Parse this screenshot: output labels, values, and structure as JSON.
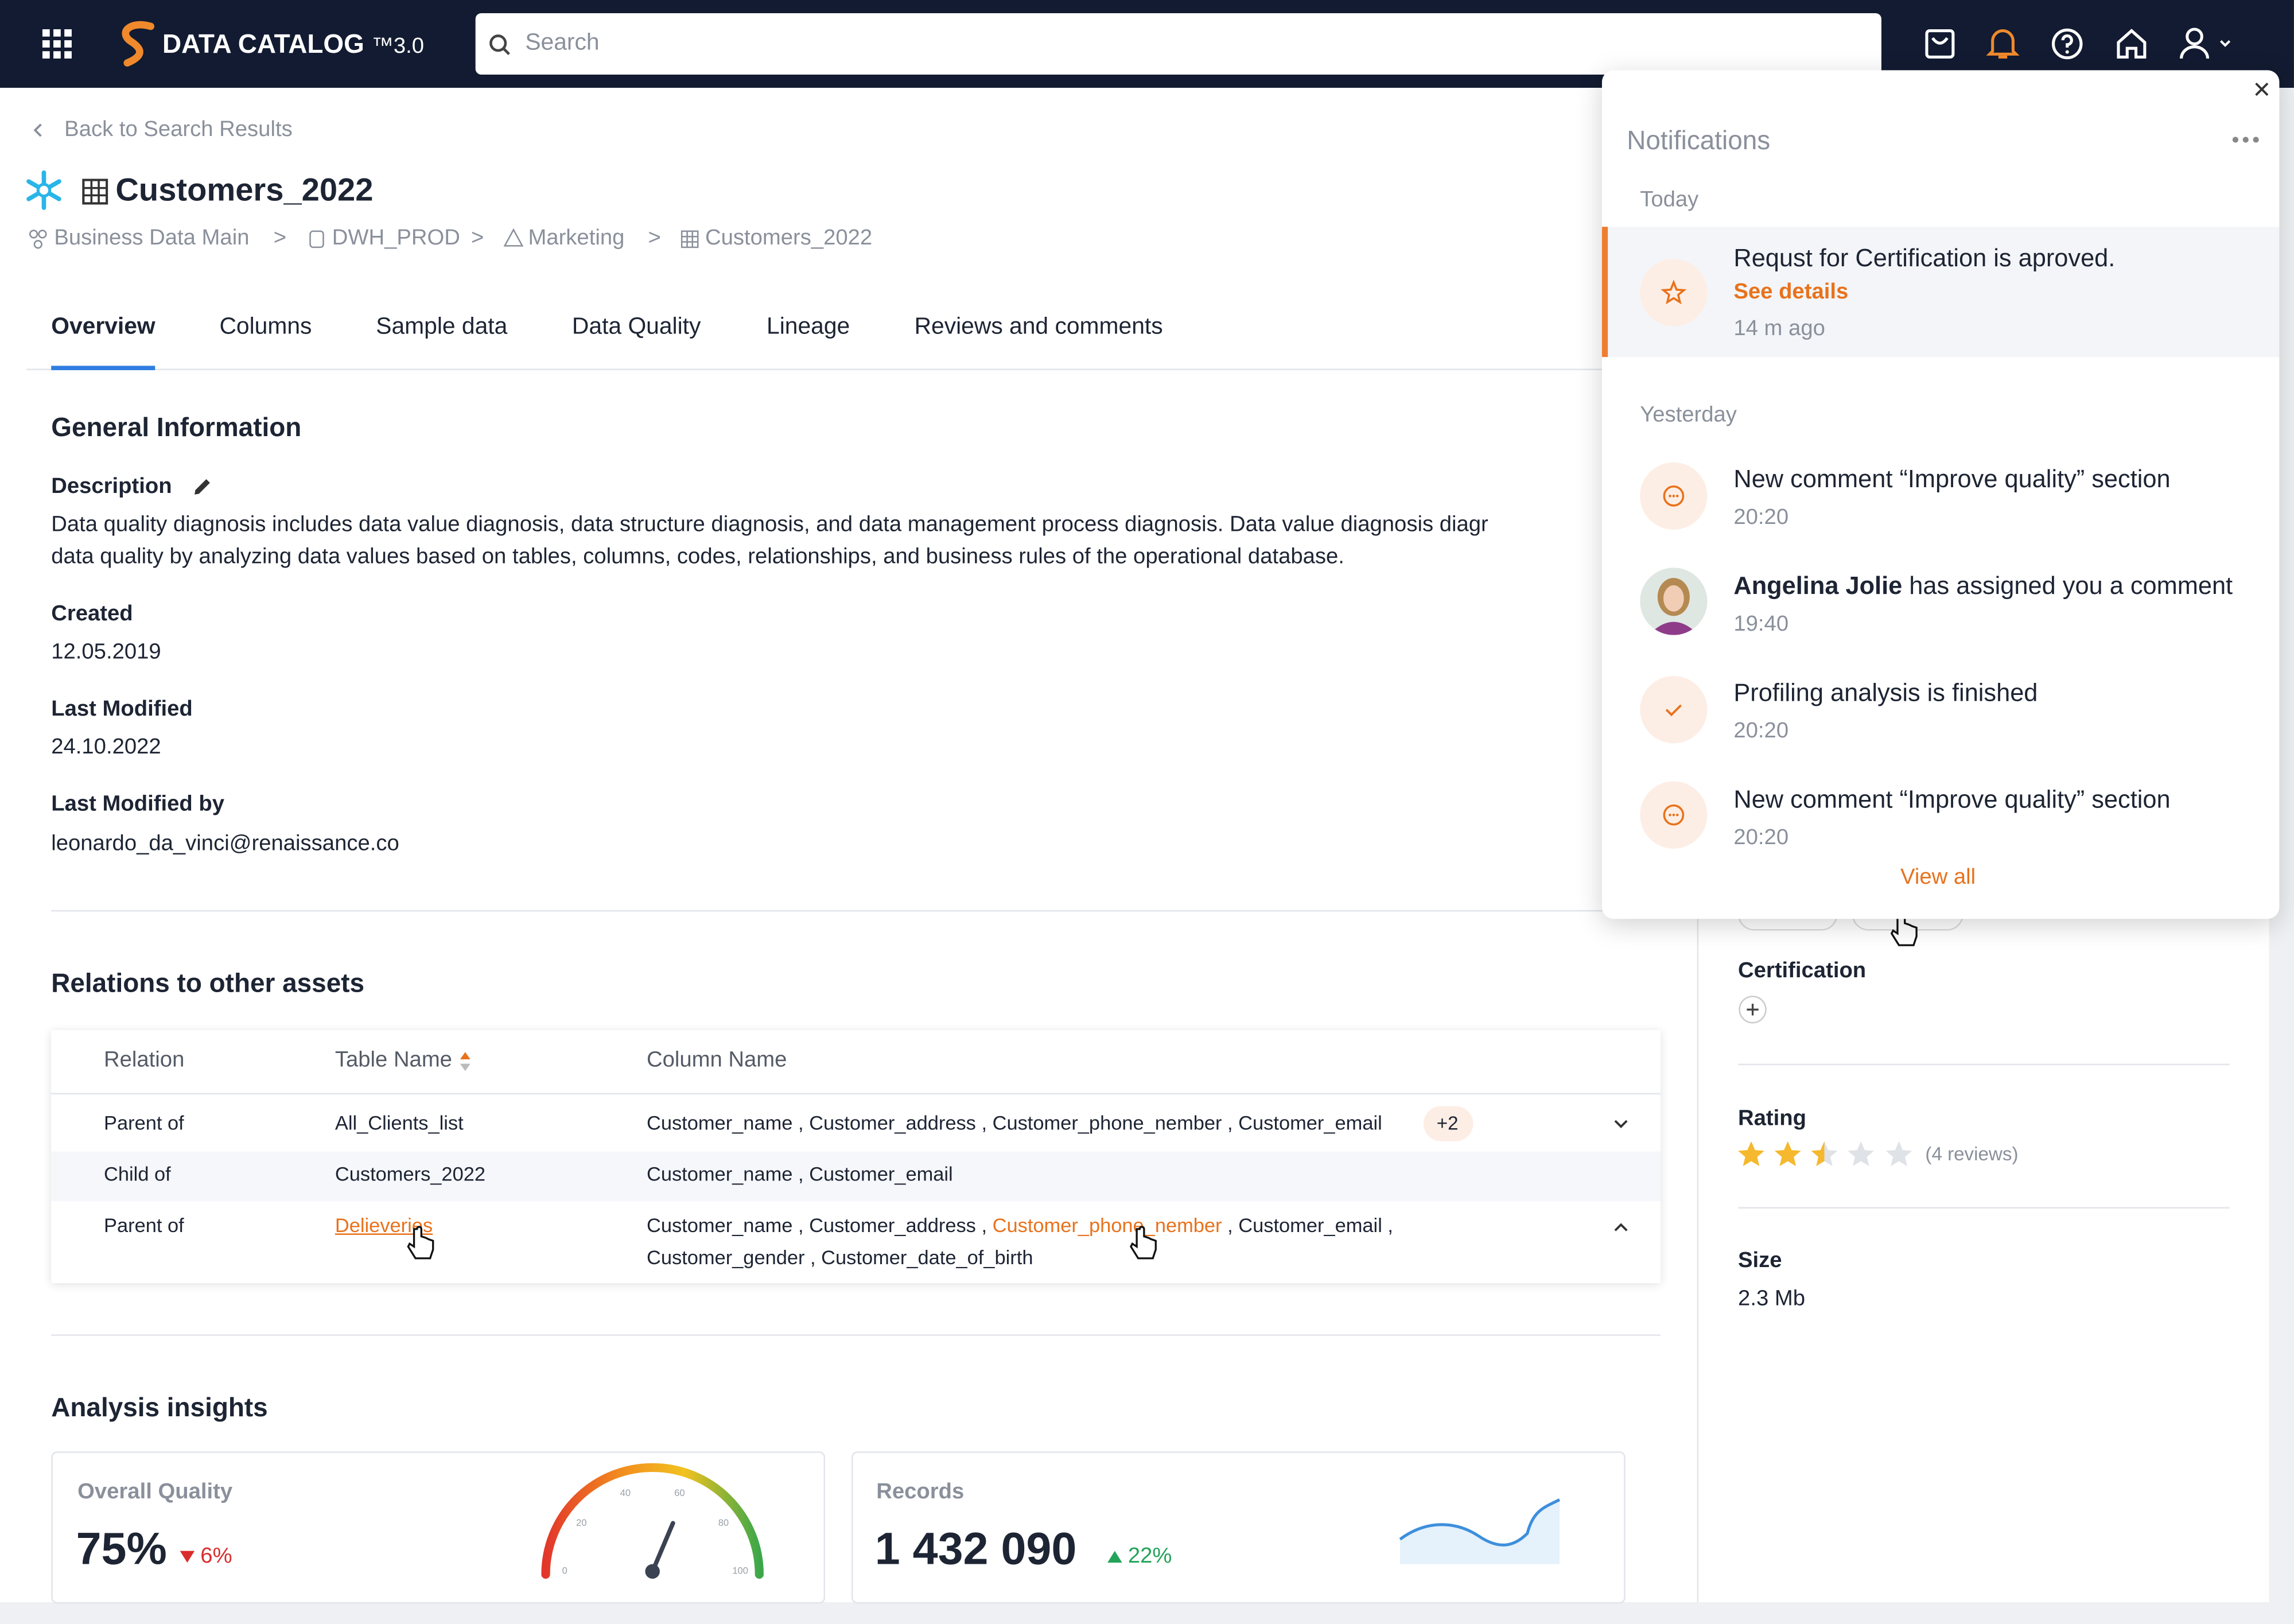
{
  "header": {
    "brand": "DATA CATALOG ",
    "brand_suffix": "™3.0",
    "search_placeholder": "Search"
  },
  "back_link": "Back to Search Results",
  "asset": {
    "title": "Customers_2022",
    "breadcrumb": [
      "Business Data Main",
      "DWH_PROD",
      "Marketing",
      "Customers_2022"
    ],
    "breadcrumb_separator": ">"
  },
  "tabs": [
    "Overview",
    "Columns",
    "Sample data",
    "Data Quality",
    "Lineage",
    "Reviews and comments"
  ],
  "general_information": {
    "heading": "General Information",
    "description": {
      "label": "Description",
      "lines": [
        "Data quality diagnosis includes data value diagnosis, data structure diagnosis, and data management process diagnosis. Data value diagnosis diagr",
        "data quality by analyzing data values based on tables, columns, codes, relationships, and business rules of the operational database."
      ]
    },
    "fields": [
      {
        "label": "Created",
        "value": "12.05.2019"
      },
      {
        "label": "Last Modified",
        "value": "24.10.2022"
      },
      {
        "label": "Last Modified by",
        "value": "leonardo_da_vinci@renaissance.co"
      }
    ]
  },
  "relations": {
    "heading": "Relations to other assets",
    "columns": [
      "Relation",
      "Table Name",
      "Column Name"
    ],
    "rows": [
      {
        "relation": "Parent of",
        "table_name": "All_Clients_list",
        "column_names": [
          "Customer_name , Customer_address , Customer_phone_nember , Customer_email"
        ],
        "more": "+2"
      },
      {
        "relation": "Child of",
        "table_name": "Customers_2022",
        "column_names": [
          "Customer_name , Customer_email"
        ]
      },
      {
        "relation": "Parent of",
        "table_name": "Delieveries",
        "column_names": [
          "Customer_name , Customer_address , ",
          "Customer_phone_nember",
          " , Customer_email ,",
          "Customer_gender , Customer_date_of_birth"
        ]
      }
    ]
  },
  "analysis_insights": {
    "heading": "Analysis insights",
    "cards": [
      {
        "label": "Overall Quality",
        "value": "75%",
        "change": "6%",
        "gauge_ticks": [
          "0",
          "20",
          "40",
          "60",
          "80",
          "100"
        ]
      },
      {
        "label": "Records",
        "value": "1 432 090",
        "change": "22%"
      }
    ]
  },
  "sidebar": {
    "certification": "Certification",
    "rating": {
      "label": "Rating",
      "reviews": "(4 reviews)"
    },
    "size": {
      "label": "Size",
      "value": "2.3 Mb"
    }
  },
  "notifications": {
    "title": "Notifications",
    "groups": [
      {
        "label": "Today",
        "items": [
          {
            "text": "Requst for Certification is aproved.",
            "link": "See details",
            "time": "14 m ago"
          }
        ]
      },
      {
        "label": "Yesterday",
        "items": [
          {
            "text": "New comment “Improve quality” section",
            "time": "20:20"
          },
          {
            "author": "Angelina Jolie",
            "text": " has assigned you a comment",
            "time": "19:40"
          },
          {
            "text": "Profiling analysis is finished",
            "time": "20:20"
          },
          {
            "text": "New comment “Improve quality” section",
            "time": "20:20"
          }
        ]
      }
    ],
    "view_all": "View all"
  }
}
